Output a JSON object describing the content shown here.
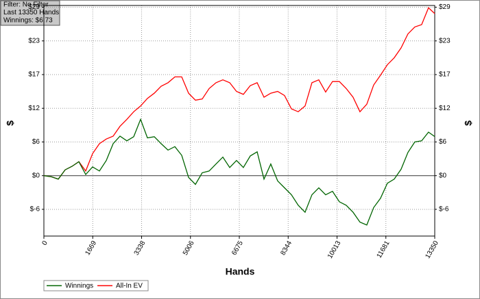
{
  "chart_data": {
    "type": "line",
    "filter_box": [
      "Filter: No Filter",
      "Last  13350 Hands",
      "Winnings: $6.73"
    ],
    "x_label": "Hands",
    "y_label": "$",
    "x": [
      0,
      258,
      492,
      726,
      960,
      1195,
      1429,
      1663,
      1897,
      2131,
      2365,
      2599,
      2834,
      3068,
      3302,
      3536,
      3770,
      4004,
      4239,
      4473,
      4707,
      4941,
      5175,
      5409,
      5644,
      5878,
      6112,
      6346,
      6580,
      6814,
      7049,
      7283,
      7517,
      7751,
      7985,
      8219,
      8454,
      8688,
      8922,
      9156,
      9390,
      9624,
      9859,
      10093,
      10327,
      10561,
      10795,
      11029,
      11263,
      11498,
      11732,
      11966,
      12200,
      12434,
      12668,
      12902,
      13137,
      13350
    ],
    "series": [
      {
        "name": "Winnings",
        "color": "#006400",
        "values": [
          0,
          -0.2,
          -0.6,
          1.0,
          1.6,
          2.4,
          0.2,
          1.5,
          0.8,
          2.6,
          5.5,
          6.8,
          6.0,
          6.7,
          9.7,
          6.5,
          6.7,
          5.5,
          4.4,
          5.0,
          3.5,
          -0.3,
          -1.5,
          0.5,
          0.8,
          2.0,
          3.2,
          1.4,
          2.6,
          1.4,
          3.4,
          4.1,
          -0.6,
          2.0,
          -0.9,
          -2.1,
          -3.3,
          -5.1,
          -6.3,
          -3.3,
          -2.1,
          -3.3,
          -2.7,
          -4.5,
          -5.1,
          -6.3,
          -8.0,
          -8.5,
          -5.5,
          -3.9,
          -1.3,
          -0.6,
          1.1,
          4.0,
          5.8,
          6.0,
          7.5,
          6.73
        ]
      },
      {
        "name": "All-In EV",
        "color": "#ff0000",
        "values": [
          0,
          -0.2,
          -0.6,
          1.0,
          1.6,
          2.4,
          0.8,
          3.8,
          5.5,
          6.3,
          6.8,
          8.5,
          9.7,
          11.0,
          12.0,
          13.3,
          14.2,
          15.4,
          16.0,
          17.0,
          17.0,
          14.2,
          13.0,
          13.2,
          15.0,
          16.0,
          16.5,
          16.0,
          14.5,
          14.0,
          15.5,
          16.0,
          13.5,
          14.2,
          14.5,
          13.8,
          11.5,
          11.0,
          12.0,
          16.0,
          16.5,
          14.4,
          16.2,
          16.2,
          15.0,
          13.5,
          11.0,
          12.3,
          15.6,
          17.3,
          19.1,
          20.3,
          22.0,
          24.4,
          25.6,
          26.0,
          28.9,
          27.9
        ]
      }
    ],
    "xlim": [
      0,
      13350
    ],
    "xticks": [
      0,
      1669,
      3338,
      5006,
      6675,
      8344,
      10013,
      11681,
      13350
    ],
    "ylim": [
      -10.4,
      29.3
    ],
    "yticks": [
      {
        "value": -5.8,
        "label": "$-6"
      },
      {
        "value": 0,
        "label": "$0"
      },
      {
        "value": 5.8,
        "label": "$6"
      },
      {
        "value": 11.6,
        "label": "$12"
      },
      {
        "value": 17.4,
        "label": "$17"
      },
      {
        "value": 23.2,
        "label": "$23"
      },
      {
        "value": 29,
        "label": "$29"
      }
    ],
    "grid": true
  }
}
